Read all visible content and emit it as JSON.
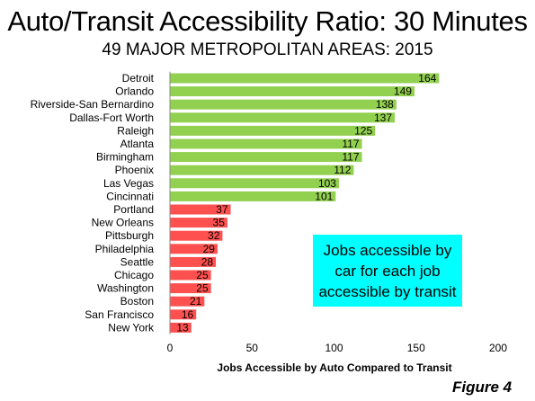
{
  "header": {
    "title": "Auto/Transit Accessibility Ratio: 30 Minutes",
    "subtitle": "49 MAJOR METROPOLITAN AREAS: 2015"
  },
  "annotation": "Jobs accessible by car for each job accessible by transit",
  "figure_label": "Figure 4",
  "colors": {
    "high": "#92d050",
    "low": "#ff5050",
    "annotation_bg": "#00ffff"
  },
  "chart_data": {
    "type": "bar",
    "orientation": "horizontal",
    "title": "Auto/Transit Accessibility Ratio: 30 Minutes",
    "subtitle": "49 MAJOR METROPOLITAN AREAS: 2015",
    "xlabel": "Jobs Accessible by Auto Compared to Transit",
    "xlim": [
      0,
      200
    ],
    "xticks": [
      0,
      50,
      100,
      150,
      200
    ],
    "grid": false,
    "categories": [
      "Detroit",
      "Orlando",
      "Riverside-San Bernardino",
      "Dallas-Fort Worth",
      "Raleigh",
      "Atlanta",
      "Birmingham",
      "Phoenix",
      "Las Vegas",
      "Cincinnati",
      "Portland",
      "New Orleans",
      "Pittsburgh",
      "Philadelphia",
      "Seattle",
      "Chicago",
      "Washington",
      "Boston",
      "San Francisco",
      "New York"
    ],
    "values": [
      164,
      149,
      138,
      137,
      125,
      117,
      117,
      112,
      103,
      101,
      37,
      35,
      32,
      29,
      28,
      25,
      25,
      21,
      16,
      13
    ],
    "bar_colors": [
      "#92d050",
      "#92d050",
      "#92d050",
      "#92d050",
      "#92d050",
      "#92d050",
      "#92d050",
      "#92d050",
      "#92d050",
      "#92d050",
      "#ff5050",
      "#ff5050",
      "#ff5050",
      "#ff5050",
      "#ff5050",
      "#ff5050",
      "#ff5050",
      "#ff5050",
      "#ff5050",
      "#ff5050"
    ]
  }
}
